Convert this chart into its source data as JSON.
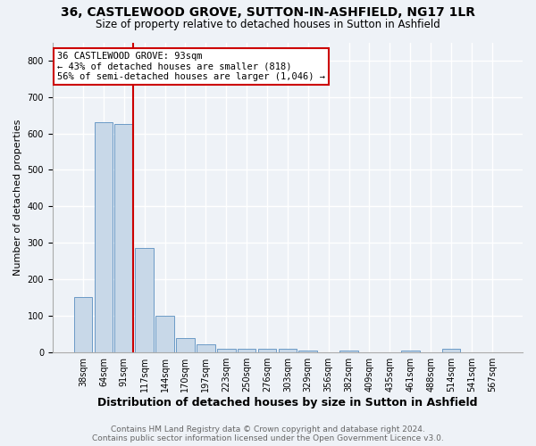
{
  "title": "36, CASTLEWOOD GROVE, SUTTON-IN-ASHFIELD, NG17 1LR",
  "subtitle": "Size of property relative to detached houses in Sutton in Ashfield",
  "xlabel": "Distribution of detached houses by size in Sutton in Ashfield",
  "ylabel": "Number of detached properties",
  "categories": [
    "38sqm",
    "64sqm",
    "91sqm",
    "117sqm",
    "144sqm",
    "170sqm",
    "197sqm",
    "223sqm",
    "250sqm",
    "276sqm",
    "303sqm",
    "329sqm",
    "356sqm",
    "382sqm",
    "409sqm",
    "435sqm",
    "461sqm",
    "488sqm",
    "514sqm",
    "541sqm",
    "567sqm"
  ],
  "values": [
    150,
    630,
    625,
    285,
    100,
    38,
    22,
    8,
    8,
    8,
    8,
    3,
    0,
    5,
    0,
    0,
    3,
    0,
    8,
    0,
    0
  ],
  "bar_color": "#c8d8e8",
  "bar_edge_color": "#5a8fc0",
  "annotation_text_line1": "36 CASTLEWOOD GROVE: 93sqm",
  "annotation_text_line2": "← 43% of detached houses are smaller (818)",
  "annotation_text_line3": "56% of semi-detached houses are larger (1,046) →",
  "annotation_box_color": "#ffffff",
  "annotation_box_edge_color": "#cc0000",
  "red_line_color": "#cc0000",
  "footer_line1": "Contains HM Land Registry data © Crown copyright and database right 2024.",
  "footer_line2": "Contains public sector information licensed under the Open Government Licence v3.0.",
  "ylim": [
    0,
    850
  ],
  "background_color": "#eef2f7",
  "grid_color": "#ffffff",
  "title_fontsize": 10,
  "subtitle_fontsize": 8.5,
  "xlabel_fontsize": 9,
  "ylabel_fontsize": 8,
  "tick_fontsize": 7,
  "annotation_fontsize": 7.5,
  "footer_fontsize": 6.5
}
